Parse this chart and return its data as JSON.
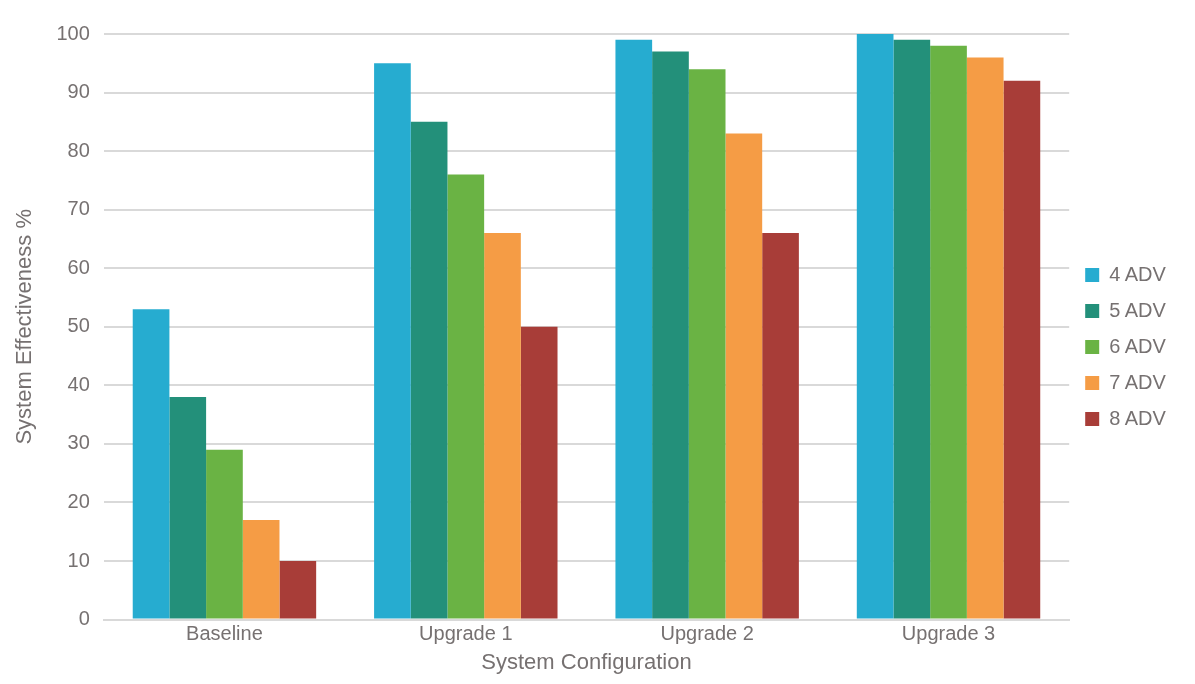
{
  "chart_data": {
    "type": "bar",
    "xlabel": "System Configuration",
    "ylabel": "System Effectiveness %",
    "categories": [
      "Baseline",
      "Upgrade 1",
      "Upgrade 2",
      "Upgrade 3"
    ],
    "series": [
      {
        "name": "4 ADV",
        "color": "#26acd0",
        "values": [
          53,
          95,
          99,
          100
        ]
      },
      {
        "name": "5 ADV",
        "color": "#23907a",
        "values": [
          38,
          85,
          97,
          99
        ]
      },
      {
        "name": "6 ADV",
        "color": "#6ab344",
        "values": [
          29,
          76,
          94,
          98
        ]
      },
      {
        "name": "7 ADV",
        "color": "#f59c45",
        "values": [
          17,
          66,
          83,
          96
        ]
      },
      {
        "name": "8 ADV",
        "color": "#a83d38",
        "values": [
          10,
          50,
          66,
          92
        ]
      }
    ],
    "ylim": [
      0,
      100
    ],
    "yticks": [
      0,
      10,
      20,
      30,
      40,
      50,
      60,
      70,
      80,
      90,
      100
    ],
    "grid": "y",
    "legend": "right"
  }
}
